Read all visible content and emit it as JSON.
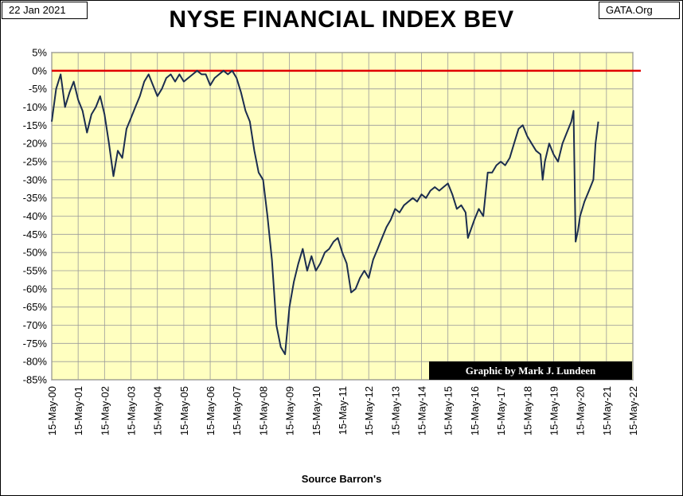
{
  "header": {
    "date_label": "22 Jan 2021",
    "source_label": "GATA.Org",
    "title": "NYSE FINANCIAL INDEX BEV"
  },
  "credit": "Graphic by Mark J. Lundeen",
  "footer": "Source Barron's",
  "colors": {
    "plot_background": "#ffffc0",
    "grid": "#9a9a9a",
    "series_line": "#1b2d4f",
    "reference_line": "#e00000"
  },
  "chart_data": {
    "type": "line",
    "title": "NYSE FINANCIAL INDEX BEV",
    "xlabel": "Source Barron's",
    "ylabel": "",
    "ylim": [
      -85,
      5
    ],
    "y_ticks": [
      5,
      0,
      -5,
      -10,
      -15,
      -20,
      -25,
      -30,
      -35,
      -40,
      -45,
      -50,
      -55,
      -60,
      -65,
      -70,
      -75,
      -80,
      -85
    ],
    "y_tick_labels": [
      "5%",
      "0%",
      "-5%",
      "-10%",
      "-15%",
      "-20%",
      "-25%",
      "-30%",
      "-35%",
      "-40%",
      "-45%",
      "-50%",
      "-55%",
      "-60%",
      "-65%",
      "-70%",
      "-75%",
      "-80%",
      "-85%"
    ],
    "x_tick_labels": [
      "15-May-00",
      "15-May-01",
      "15-May-02",
      "15-May-03",
      "15-May-04",
      "15-May-05",
      "15-May-06",
      "15-May-07",
      "15-May-08",
      "15-May-09",
      "15-May-10",
      "15-May-11",
      "15-May-12",
      "15-May-13",
      "15-May-14",
      "15-May-15",
      "15-May-16",
      "15-May-17",
      "15-May-18",
      "15-May-19",
      "15-May-20",
      "15-May-21",
      "15-May-22"
    ],
    "xlim": [
      "15-May-00",
      "15-May-22"
    ],
    "grid": true,
    "reference_line": {
      "y": 0
    },
    "series": [
      {
        "x": [
          "15-May-00",
          "15-Jul-00",
          "15-Sep-00",
          "15-Nov-00",
          "15-Jan-01",
          "15-Mar-01",
          "15-May-01",
          "15-Jul-01",
          "15-Sep-01",
          "15-Nov-01",
          "15-Jan-02",
          "15-Mar-02",
          "15-May-02",
          "15-Jul-02",
          "15-Sep-02",
          "15-Nov-02",
          "15-Jan-03",
          "15-Mar-03",
          "15-May-03",
          "15-Jul-03",
          "15-Sep-03",
          "15-Nov-03",
          "15-Jan-04",
          "15-Mar-04",
          "15-May-04",
          "15-Jul-04",
          "15-Sep-04",
          "15-Nov-04",
          "15-Jan-05",
          "15-Mar-05",
          "15-May-05",
          "15-Jul-05",
          "15-Sep-05",
          "15-Nov-05",
          "15-Jan-06",
          "15-Mar-06",
          "15-May-06",
          "15-Jul-06",
          "15-Sep-06",
          "15-Nov-06",
          "15-Jan-07",
          "15-Mar-07",
          "15-May-07",
          "15-Jul-07",
          "15-Sep-07",
          "15-Nov-07",
          "15-Jan-08",
          "15-Mar-08",
          "15-May-08",
          "15-Jul-08",
          "15-Sep-08",
          "15-Nov-08",
          "15-Jan-09",
          "15-Mar-09",
          "15-May-09",
          "15-Jul-09",
          "15-Sep-09",
          "15-Nov-09",
          "15-Jan-10",
          "15-Mar-10",
          "15-May-10",
          "15-Jul-10",
          "15-Sep-10",
          "15-Nov-10",
          "15-Jan-11",
          "15-Mar-11",
          "15-May-11",
          "15-Jul-11",
          "15-Sep-11",
          "15-Nov-11",
          "15-Jan-12",
          "15-Mar-12",
          "15-May-12",
          "15-Jul-12",
          "15-Sep-12",
          "15-Nov-12",
          "15-Jan-13",
          "15-Mar-13",
          "15-May-13",
          "15-Jul-13",
          "15-Sep-13",
          "15-Nov-13",
          "15-Jan-14",
          "15-Mar-14",
          "15-May-14",
          "15-Jul-14",
          "15-Sep-14",
          "15-Nov-14",
          "15-Jan-15",
          "15-Mar-15",
          "15-May-15",
          "15-Jul-15",
          "15-Sep-15",
          "15-Nov-15",
          "15-Jan-16",
          "15-Feb-16",
          "15-May-16",
          "15-Jul-16",
          "15-Sep-16",
          "15-Nov-16",
          "15-Jan-17",
          "15-Mar-17",
          "15-May-17",
          "15-Jul-17",
          "15-Sep-17",
          "15-Nov-17",
          "15-Jan-18",
          "15-Mar-18",
          "15-May-18",
          "15-Jul-18",
          "15-Sep-18",
          "15-Nov-18",
          "15-Dec-18",
          "15-Jan-19",
          "15-Mar-19",
          "15-May-19",
          "15-Jul-19",
          "15-Sep-19",
          "15-Nov-19",
          "15-Jan-20",
          "15-Feb-20",
          "15-Mar-20",
          "15-Apr-20",
          "15-May-20",
          "15-Jul-20",
          "15-Sep-20",
          "15-Nov-20",
          "15-Dec-20",
          "22-Jan-21"
        ],
        "values": [
          -14,
          -5,
          -1,
          -10,
          -6,
          -3,
          -8,
          -11,
          -17,
          -12,
          -10,
          -7,
          -12,
          -20,
          -29,
          -22,
          -24,
          -16,
          -13,
          -10,
          -7,
          -3,
          -1,
          -4,
          -7,
          -5,
          -2,
          -1,
          -3,
          -1,
          -3,
          -2,
          -1,
          0,
          -1,
          -1,
          -4,
          -2,
          -1,
          0,
          -1,
          0,
          -2,
          -6,
          -11,
          -14,
          -22,
          -28,
          -30,
          -40,
          -52,
          -70,
          -76,
          -78,
          -65,
          -58,
          -53,
          -49,
          -55,
          -51,
          -55,
          -53,
          -50,
          -49,
          -47,
          -46,
          -50,
          -53,
          -61,
          -60,
          -57,
          -55,
          -57,
          -52,
          -49,
          -46,
          -43,
          -41,
          -38,
          -39,
          -37,
          -36,
          -35,
          -36,
          -34,
          -35,
          -33,
          -32,
          -33,
          -32,
          -31,
          -34,
          -38,
          -37,
          -39,
          -46,
          -41,
          -38,
          -40,
          -28,
          -28,
          -26,
          -25,
          -26,
          -24,
          -20,
          -16,
          -15,
          -18,
          -20,
          -22,
          -23,
          -30,
          -25,
          -20,
          -23,
          -25,
          -20,
          -17,
          -14,
          -11,
          -47,
          -44,
          -40,
          -36,
          -33,
          -30,
          -20,
          -14
        ]
      }
    ]
  }
}
